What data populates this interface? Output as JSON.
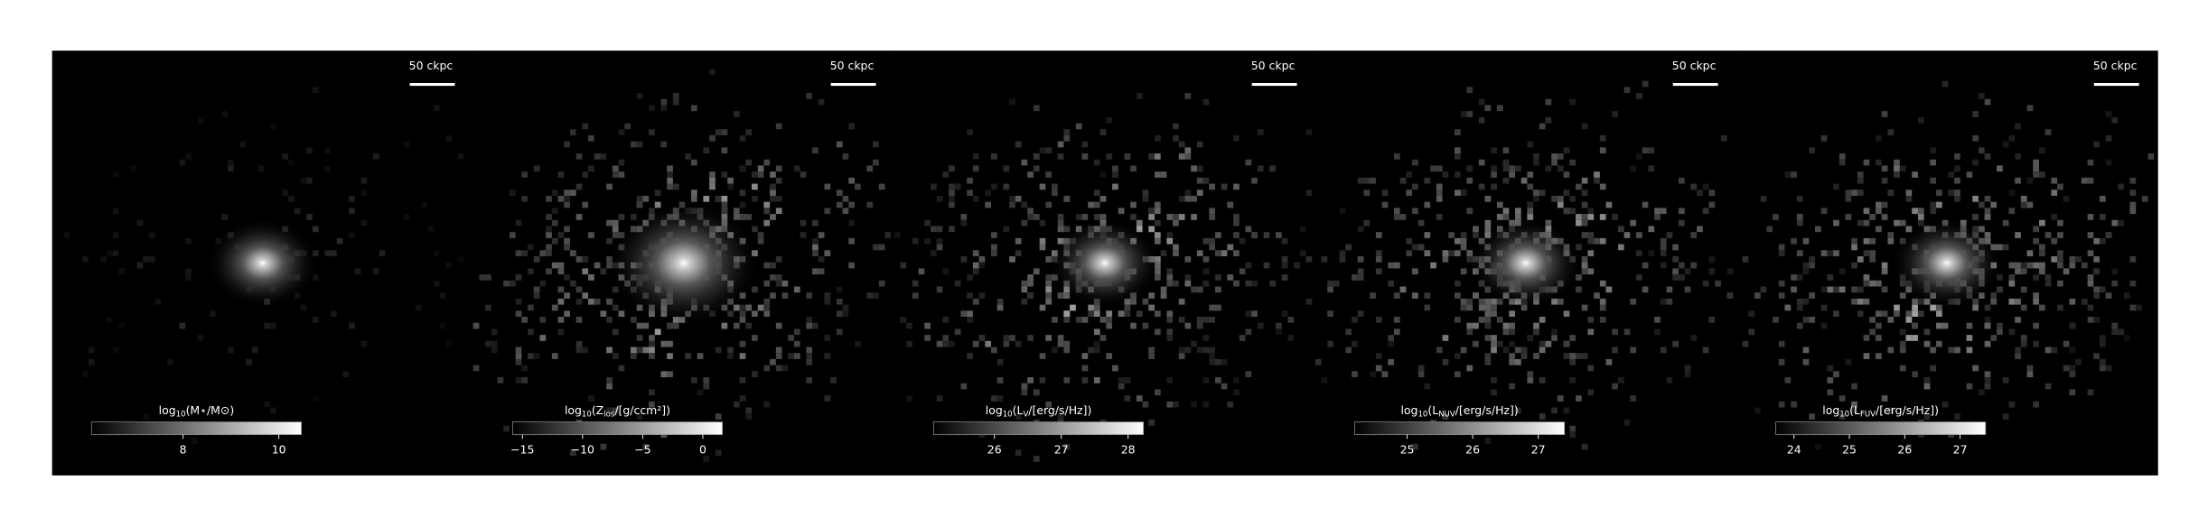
{
  "chart_data": [
    {
      "type": "image",
      "cmap": "gray",
      "annotation": "50 ckpc",
      "colorbar_label": [
        "log",
        "10",
        "(M⋆/M⊙)"
      ],
      "clim": [
        6.09,
        10.47
      ],
      "cticks": [
        8,
        10
      ]
    },
    {
      "type": "image",
      "cmap": "gray",
      "annotation": "50 ckpc",
      "colorbar_label": [
        "log",
        "10",
        "(Z",
        "los",
        "/[g/ccm²])"
      ],
      "clim": [
        -15.82,
        1.63
      ],
      "cticks": [
        {
          "value": -15,
          "label": "−15"
        },
        {
          "value": -10,
          "label": "−10"
        },
        {
          "value": -5,
          "label": "−5"
        },
        0
      ]
    },
    {
      "type": "image",
      "cmap": "gray",
      "annotation": "50 ckpc",
      "colorbar_label": [
        "log",
        "10",
        "(L",
        "V",
        "/[erg/s/Hz])"
      ],
      "clim": [
        25.09,
        28.23
      ],
      "cticks": [
        26,
        27,
        28
      ]
    },
    {
      "type": "image",
      "cmap": "gray",
      "annotation": "50 ckpc",
      "colorbar_label": [
        "log",
        "10",
        "(L",
        "NUV",
        "/[erg/s/Hz])"
      ],
      "clim": [
        24.2,
        27.4
      ],
      "cticks": [
        25,
        26,
        27
      ]
    },
    {
      "type": "image",
      "cmap": "gray",
      "annotation": "50 ckpc",
      "colorbar_label": [
        "log",
        "10",
        "(L",
        "FUV",
        "/[erg/s/Hz])"
      ],
      "clim": [
        23.67,
        27.46
      ],
      "cticks": [
        24,
        25,
        26,
        27
      ]
    }
  ]
}
